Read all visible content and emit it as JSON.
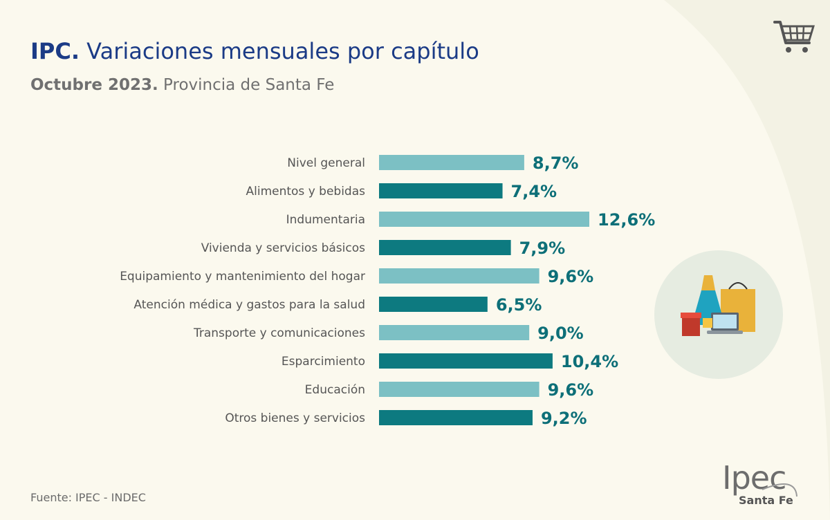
{
  "header": {
    "title_bold": "IPC.",
    "title_rest": "Variaciones mensuales por capítulo",
    "subtitle_bold": "Octubre 2023.",
    "subtitle_rest": "Provincia de Santa Fe"
  },
  "footer": {
    "source": "Fuente: IPEC - INDEC",
    "logo_text": "Ipec",
    "logo_sub": "Santa Fe"
  },
  "icons": [
    "shopping-cart-icon",
    "shopping-items-icon"
  ],
  "colors": {
    "light_bar": "#7cc0c4",
    "dark_bar": "#0d7a80",
    "value_text": "#0d6f78",
    "title": "#1b3b86",
    "background": "#fbf9ee",
    "arc": "#f2f1e3",
    "circle": "#e6ece1"
  },
  "chart_data": {
    "type": "bar",
    "orientation": "horizontal",
    "categories": [
      "Nivel general",
      "Alimentos y bebidas",
      "Indumentaria",
      "Vivienda y servicios básicos",
      "Equipamiento y mantenimiento del hogar",
      "Atención médica y gastos para la salud",
      "Transporte y comunicaciones",
      "Esparcimiento",
      "Educación",
      "Otros bienes y servicios"
    ],
    "values": [
      8.7,
      7.4,
      12.6,
      7.9,
      9.6,
      6.5,
      9.0,
      10.4,
      9.6,
      9.2
    ],
    "value_labels": [
      "8,7%",
      "7,4%",
      "12,6%",
      "7,9%",
      "9,6%",
      "6,5%",
      "9,0%",
      "10,4%",
      "9,6%",
      "9,2%"
    ],
    "bar_shades": [
      "light",
      "dark",
      "light",
      "dark",
      "light",
      "dark",
      "light",
      "dark",
      "light",
      "dark"
    ],
    "unit": "%",
    "xlim": [
      0,
      12.6
    ],
    "grid": false,
    "legend": "none"
  }
}
